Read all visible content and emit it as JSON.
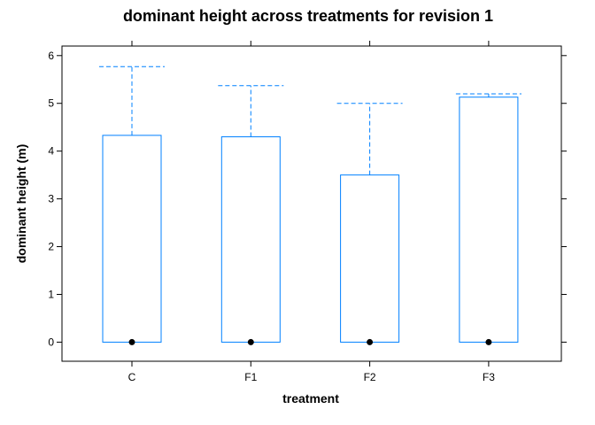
{
  "chart_data": {
    "type": "box",
    "title": "dominant height across treatments for revision 1",
    "xlabel": "treatment",
    "ylabel": "dominant height (m)",
    "categories": [
      "C",
      "F1",
      "F2",
      "F3"
    ],
    "ylim": [
      -0.4,
      6.2
    ],
    "yticks": [
      0,
      1,
      2,
      3,
      4,
      5,
      6
    ],
    "box_color": "#0080ff",
    "median_color": "#000000",
    "boxes": [
      {
        "category": "C",
        "lower_whisker": 0,
        "q1": 0,
        "median": 0,
        "q3": 4.33,
        "upper_whisker": 5.77
      },
      {
        "category": "F1",
        "lower_whisker": 0,
        "q1": 0,
        "median": 0,
        "q3": 4.3,
        "upper_whisker": 5.37
      },
      {
        "category": "F2",
        "lower_whisker": 0,
        "q1": 0,
        "median": 0,
        "q3": 3.5,
        "upper_whisker": 5.0
      },
      {
        "category": "F3",
        "lower_whisker": 0,
        "q1": 0,
        "median": 0,
        "q3": 5.13,
        "upper_whisker": 5.2
      }
    ]
  }
}
